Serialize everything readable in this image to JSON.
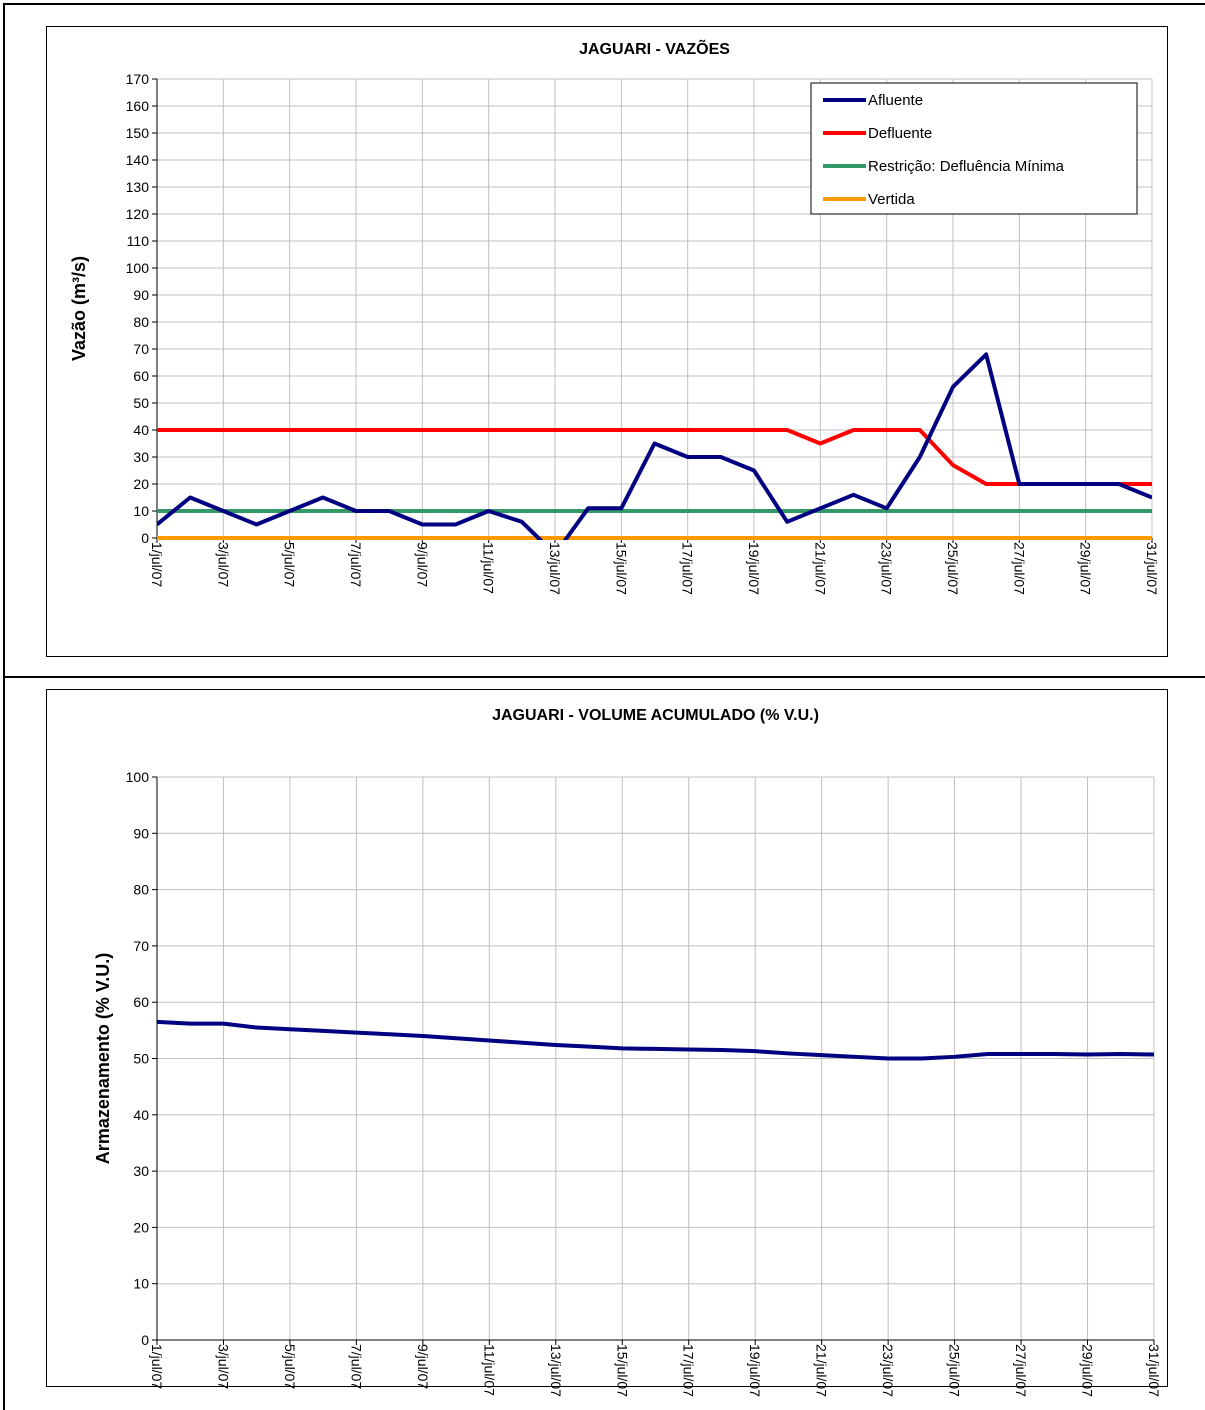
{
  "chart_data": [
    {
      "type": "line",
      "title": "JAGUARI - VAZÕES",
      "xlabel": "",
      "ylabel": "Vazão (m³/s)",
      "ylim": [
        0,
        170
      ],
      "yticks": [
        0,
        10,
        20,
        30,
        40,
        50,
        60,
        70,
        80,
        90,
        100,
        110,
        120,
        130,
        140,
        150,
        160,
        170
      ],
      "categories": [
        "1/jul/07",
        "2/jul/07",
        "3/jul/07",
        "4/jul/07",
        "5/jul/07",
        "6/jul/07",
        "7/jul/07",
        "8/jul/07",
        "9/jul/07",
        "10/jul/07",
        "11/jul/07",
        "12/jul/07",
        "13/jul/07",
        "14/jul/07",
        "15/jul/07",
        "16/jul/07",
        "17/jul/07",
        "18/jul/07",
        "19/jul/07",
        "20/jul/07",
        "21/jul/07",
        "22/jul/07",
        "23/jul/07",
        "24/jul/07",
        "25/jul/07",
        "26/jul/07",
        "27/jul/07",
        "28/jul/07",
        "29/jul/07",
        "30/jul/07",
        "31/jul/07"
      ],
      "tick_labels": [
        "1/jul/07",
        "3/jul/07",
        "5/jul/07",
        "7/jul/07",
        "9/jul/07",
        "11/jul/07",
        "13/jul/07",
        "15/jul/07",
        "17/jul/07",
        "19/jul/07",
        "21/jul/07",
        "23/jul/07",
        "25/jul/07",
        "27/jul/07",
        "29/jul/07",
        "31/jul/07"
      ],
      "grid": true,
      "legend_position": "top-right",
      "series": [
        {
          "name": "Afluente",
          "color": "#000080",
          "values": [
            5,
            15,
            10,
            5,
            10,
            15,
            10,
            10,
            5,
            5,
            10,
            6,
            -6,
            11,
            11,
            35,
            30,
            30,
            25,
            6,
            11,
            16,
            11,
            30,
            56,
            68,
            20,
            20,
            20,
            20,
            15
          ]
        },
        {
          "name": "Defluente",
          "color": "#ff0000",
          "values": [
            40,
            40,
            40,
            40,
            40,
            40,
            40,
            40,
            40,
            40,
            40,
            40,
            40,
            40,
            40,
            40,
            40,
            40,
            40,
            40,
            35,
            40,
            40,
            40,
            27,
            20,
            20,
            20,
            20,
            20,
            20
          ]
        },
        {
          "name": "Restrição: Defluência Mínima",
          "color": "#339966",
          "values": [
            10,
            10,
            10,
            10,
            10,
            10,
            10,
            10,
            10,
            10,
            10,
            10,
            10,
            10,
            10,
            10,
            10,
            10,
            10,
            10,
            10,
            10,
            10,
            10,
            10,
            10,
            10,
            10,
            10,
            10,
            10
          ]
        },
        {
          "name": "Vertida",
          "color": "#ff9900",
          "values": [
            0,
            0,
            0,
            0,
            0,
            0,
            0,
            0,
            0,
            0,
            0,
            0,
            0,
            0,
            0,
            0,
            0,
            0,
            0,
            0,
            0,
            0,
            0,
            0,
            0,
            0,
            0,
            0,
            0,
            0,
            0
          ]
        }
      ]
    },
    {
      "type": "line",
      "title": "JAGUARI - VOLUME ACUMULADO (% V.U.)",
      "xlabel": "",
      "ylabel": "Armazenamento (% V.U.)",
      "ylim": [
        0,
        100
      ],
      "yticks": [
        0,
        10,
        20,
        30,
        40,
        50,
        60,
        70,
        80,
        90,
        100
      ],
      "categories": [
        "1/jul/07",
        "2/jul/07",
        "3/jul/07",
        "4/jul/07",
        "5/jul/07",
        "6/jul/07",
        "7/jul/07",
        "8/jul/07",
        "9/jul/07",
        "10/jul/07",
        "11/jul/07",
        "12/jul/07",
        "13/jul/07",
        "14/jul/07",
        "15/jul/07",
        "16/jul/07",
        "17/jul/07",
        "18/jul/07",
        "19/jul/07",
        "20/jul/07",
        "21/jul/07",
        "22/jul/07",
        "23/jul/07",
        "24/jul/07",
        "25/jul/07",
        "26/jul/07",
        "27/jul/07",
        "28/jul/07",
        "29/jul/07",
        "30/jul/07",
        "31/jul/07"
      ],
      "tick_labels": [
        "1/jul/07",
        "3/jul/07",
        "5/jul/07",
        "7/jul/07",
        "9/jul/07",
        "11/jul/07",
        "13/jul/07",
        "15/jul/07",
        "17/jul/07",
        "19/jul/07",
        "21/jul/07",
        "23/jul/07",
        "25/jul/07",
        "27/jul/07",
        "29/jul/07",
        "31/jul/07"
      ],
      "grid": true,
      "series": [
        {
          "color": "#000080",
          "values": [
            56.5,
            56.2,
            56.2,
            55.5,
            55.2,
            54.9,
            54.6,
            54.3,
            54.0,
            53.6,
            53.2,
            52.8,
            52.4,
            52.1,
            51.8,
            51.7,
            51.6,
            51.5,
            51.3,
            50.9,
            50.6,
            50.3,
            50.0,
            50.0,
            50.3,
            50.8,
            50.8,
            50.8,
            50.7,
            50.8,
            50.7
          ]
        }
      ]
    }
  ]
}
